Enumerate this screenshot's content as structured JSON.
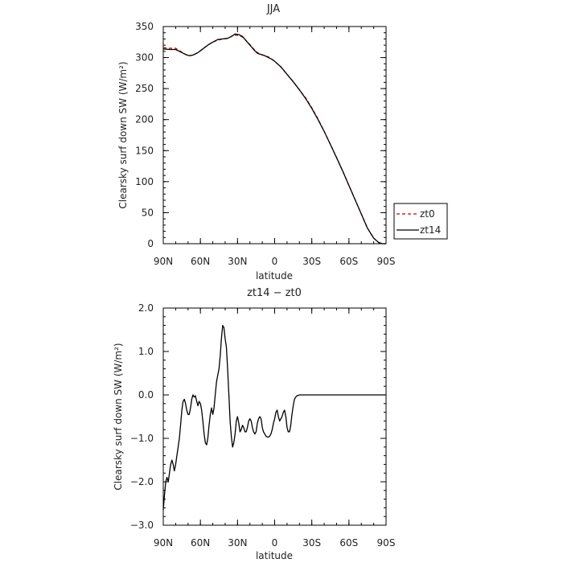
{
  "chart_data": [
    {
      "type": "line",
      "title": "JJA",
      "xlabel": "latitude",
      "ylabel": "Clearsky surf down SW (W/m²)",
      "xlim": [
        90,
        -90
      ],
      "ylim": [
        0,
        350
      ],
      "xticks": [
        {
          "value": 90,
          "label": "90N"
        },
        {
          "value": 60,
          "label": "60N"
        },
        {
          "value": 30,
          "label": "30N"
        },
        {
          "value": 0,
          "label": "0"
        },
        {
          "value": -30,
          "label": "30S"
        },
        {
          "value": -60,
          "label": "60S"
        },
        {
          "value": -90,
          "label": "90S"
        }
      ],
      "yticks": [
        {
          "value": 0,
          "label": "0"
        },
        {
          "value": 50,
          "label": "50"
        },
        {
          "value": 100,
          "label": "100"
        },
        {
          "value": 150,
          "label": "150"
        },
        {
          "value": 200,
          "label": "200"
        },
        {
          "value": 250,
          "label": "250"
        },
        {
          "value": 300,
          "label": "300"
        },
        {
          "value": 350,
          "label": "350"
        }
      ],
      "legend_position": "right",
      "series": [
        {
          "name": "zt0",
          "color": "#cc0000",
          "dash": "dashed",
          "points": [
            [
              90,
              316
            ],
            [
              85,
              315
            ],
            [
              80,
              315
            ],
            [
              76,
              310
            ],
            [
              72,
              305
            ],
            [
              69,
              303
            ],
            [
              66,
              304
            ],
            [
              62,
              308
            ],
            [
              58,
              314
            ],
            [
              54,
              320
            ],
            [
              50,
              325
            ],
            [
              46,
              328
            ],
            [
              42,
              330
            ],
            [
              38,
              331
            ],
            [
              35,
              334
            ],
            [
              32,
              336
            ],
            [
              29,
              336
            ],
            [
              26,
              333
            ],
            [
              23,
              327
            ],
            [
              20,
              321
            ],
            [
              17,
              314
            ],
            [
              14,
              308
            ],
            [
              11,
              305
            ],
            [
              8,
              303
            ],
            [
              5,
              301
            ],
            [
              2,
              297
            ],
            [
              0,
              294
            ],
            [
              -5,
              285
            ],
            [
              -10,
              273
            ],
            [
              -15,
              261
            ],
            [
              -20,
              248
            ],
            [
              -25,
              235
            ],
            [
              -30,
              219
            ],
            [
              -35,
              201
            ],
            [
              -40,
              181
            ],
            [
              -45,
              160
            ],
            [
              -50,
              139
            ],
            [
              -55,
              117
            ],
            [
              -60,
              94
            ],
            [
              -65,
              71
            ],
            [
              -70,
              48
            ],
            [
              -75,
              25
            ],
            [
              -80,
              9
            ],
            [
              -84,
              2
            ],
            [
              -87,
              0
            ],
            [
              -90,
              0
            ]
          ]
        },
        {
          "name": "zt14",
          "color": "#000000",
          "dash": "solid",
          "points": [
            [
              90,
              314
            ],
            [
              85,
              313
            ],
            [
              80,
              313
            ],
            [
              76,
              309
            ],
            [
              72,
              305
            ],
            [
              69,
              303
            ],
            [
              66,
              304
            ],
            [
              62,
              308
            ],
            [
              58,
              314
            ],
            [
              54,
              320
            ],
            [
              50,
              325
            ],
            [
              46,
              329
            ],
            [
              42,
              330
            ],
            [
              38,
              331
            ],
            [
              35,
              334
            ],
            [
              32,
              338
            ],
            [
              29,
              337
            ],
            [
              26,
              334
            ],
            [
              23,
              327
            ],
            [
              20,
              320
            ],
            [
              17,
              313
            ],
            [
              14,
              307
            ],
            [
              11,
              305
            ],
            [
              8,
              303
            ],
            [
              5,
              300
            ],
            [
              2,
              297
            ],
            [
              0,
              294
            ],
            [
              -5,
              285
            ],
            [
              -10,
              273
            ],
            [
              -15,
              261
            ],
            [
              -20,
              248
            ],
            [
              -25,
              234
            ],
            [
              -30,
              218
            ],
            [
              -35,
              200
            ],
            [
              -40,
              181
            ],
            [
              -45,
              160
            ],
            [
              -50,
              139
            ],
            [
              -55,
              117
            ],
            [
              -60,
              94
            ],
            [
              -65,
              71
            ],
            [
              -70,
              48
            ],
            [
              -75,
              25
            ],
            [
              -80,
              9
            ],
            [
              -84,
              2
            ],
            [
              -87,
              0
            ],
            [
              -90,
              0
            ]
          ]
        }
      ]
    },
    {
      "type": "line",
      "title": "zt14 − zt0",
      "xlabel": "latitude",
      "ylabel": "Clearsky surf down SW (W/m²)",
      "xlim": [
        90,
        -90
      ],
      "ylim": [
        -3,
        2
      ],
      "xticks": [
        {
          "value": 90,
          "label": "90N"
        },
        {
          "value": 60,
          "label": "60N"
        },
        {
          "value": 30,
          "label": "30N"
        },
        {
          "value": 0,
          "label": "0"
        },
        {
          "value": -30,
          "label": "30S"
        },
        {
          "value": -60,
          "label": "60S"
        },
        {
          "value": -90,
          "label": "90S"
        }
      ],
      "yticks": [
        {
          "value": -3,
          "label": "−3.0"
        },
        {
          "value": -2,
          "label": "−2.0"
        },
        {
          "value": -1,
          "label": "−1.0"
        },
        {
          "value": 0,
          "label": "0.0"
        },
        {
          "value": 1,
          "label": "1.0"
        },
        {
          "value": 2,
          "label": "2.0"
        }
      ],
      "series": [
        {
          "color": "#000000",
          "dash": "solid",
          "points": [
            [
              90,
              -2.65
            ],
            [
              89,
              -2.3
            ],
            [
              88,
              -2.0
            ],
            [
              87,
              -1.9
            ],
            [
              86,
              -2.0
            ],
            [
              85,
              -1.8
            ],
            [
              84,
              -1.6
            ],
            [
              83,
              -1.5
            ],
            [
              82,
              -1.6
            ],
            [
              81,
              -1.75
            ],
            [
              80,
              -1.6
            ],
            [
              79,
              -1.4
            ],
            [
              78,
              -1.2
            ],
            [
              77,
              -1.0
            ],
            [
              76,
              -0.7
            ],
            [
              75,
              -0.35
            ],
            [
              74,
              -0.15
            ],
            [
              73,
              -0.1
            ],
            [
              72,
              -0.2
            ],
            [
              71,
              -0.35
            ],
            [
              70,
              -0.45
            ],
            [
              69,
              -0.45
            ],
            [
              68,
              -0.3
            ],
            [
              67,
              -0.1
            ],
            [
              66,
              0.0
            ],
            [
              65,
              -0.05
            ],
            [
              64,
              -0.02
            ],
            [
              63,
              -0.15
            ],
            [
              62,
              -0.25
            ],
            [
              61,
              -0.15
            ],
            [
              60,
              -0.2
            ],
            [
              59,
              -0.35
            ],
            [
              58,
              -0.6
            ],
            [
              57,
              -0.9
            ],
            [
              56,
              -1.1
            ],
            [
              55,
              -1.15
            ],
            [
              54,
              -1.0
            ],
            [
              53,
              -0.7
            ],
            [
              52,
              -0.45
            ],
            [
              51,
              -0.3
            ],
            [
              50,
              -0.45
            ],
            [
              49,
              -0.3
            ],
            [
              48,
              0.0
            ],
            [
              47,
              0.3
            ],
            [
              46,
              0.45
            ],
            [
              45,
              0.6
            ],
            [
              44,
              0.9
            ],
            [
              43,
              1.3
            ],
            [
              42,
              1.6
            ],
            [
              41,
              1.55
            ],
            [
              40,
              1.3
            ],
            [
              39,
              1.1
            ],
            [
              38,
              0.6
            ],
            [
              37,
              0.0
            ],
            [
              36,
              -0.6
            ],
            [
              35,
              -0.95
            ],
            [
              34,
              -1.2
            ],
            [
              33,
              -1.1
            ],
            [
              32,
              -0.9
            ],
            [
              31,
              -0.6
            ],
            [
              30,
              -0.5
            ],
            [
              29,
              -0.65
            ],
            [
              28,
              -0.85
            ],
            [
              27,
              -0.8
            ],
            [
              26,
              -0.7
            ],
            [
              25,
              -0.75
            ],
            [
              24,
              -0.85
            ],
            [
              23,
              -0.85
            ],
            [
              22,
              -0.75
            ],
            [
              21,
              -0.6
            ],
            [
              20,
              -0.55
            ],
            [
              19,
              -0.6
            ],
            [
              18,
              -0.75
            ],
            [
              17,
              -0.85
            ],
            [
              16,
              -0.9
            ],
            [
              15,
              -0.85
            ],
            [
              14,
              -0.65
            ],
            [
              13,
              -0.55
            ],
            [
              12,
              -0.5
            ],
            [
              11,
              -0.55
            ],
            [
              10,
              -0.75
            ],
            [
              9,
              -0.85
            ],
            [
              8,
              -0.9
            ],
            [
              7,
              -0.95
            ],
            [
              6,
              -0.97
            ],
            [
              5,
              -0.97
            ],
            [
              4,
              -0.95
            ],
            [
              3,
              -0.9
            ],
            [
              2,
              -0.8
            ],
            [
              1,
              -0.65
            ],
            [
              0,
              -0.55
            ],
            [
              -1,
              -0.4
            ],
            [
              -2,
              -0.35
            ],
            [
              -3,
              -0.5
            ],
            [
              -4,
              -0.6
            ],
            [
              -5,
              -0.55
            ],
            [
              -6,
              -0.5
            ],
            [
              -7,
              -0.4
            ],
            [
              -8,
              -0.35
            ],
            [
              -9,
              -0.5
            ],
            [
              -10,
              -0.75
            ],
            [
              -11,
              -0.85
            ],
            [
              -12,
              -0.85
            ],
            [
              -13,
              -0.7
            ],
            [
              -14,
              -0.45
            ],
            [
              -15,
              -0.25
            ],
            [
              -16,
              -0.1
            ],
            [
              -17,
              -0.05
            ],
            [
              -18,
              -0.02
            ],
            [
              -20,
              0.0
            ],
            [
              -25,
              0.0
            ],
            [
              -30,
              0.0
            ],
            [
              -35,
              0.0
            ],
            [
              -40,
              0.0
            ],
            [
              -45,
              0.0
            ],
            [
              -50,
              0.0
            ],
            [
              -55,
              0.0
            ],
            [
              -60,
              0.0
            ],
            [
              -65,
              0.0
            ],
            [
              -70,
              0.0
            ],
            [
              -75,
              0.0
            ],
            [
              -80,
              0.0
            ],
            [
              -85,
              0.0
            ],
            [
              -90,
              0.0
            ]
          ]
        }
      ]
    }
  ]
}
